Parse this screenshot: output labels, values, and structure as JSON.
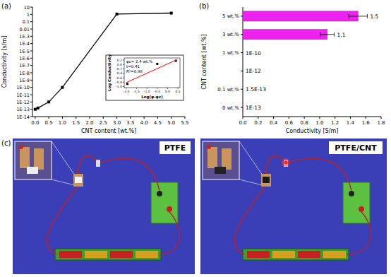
{
  "chart_data": [
    {
      "type": "line",
      "title": "(a)",
      "x_label": "CNT content [wt.%]",
      "y_label": "Conductivity [s/m]",
      "x": [
        0,
        0.1,
        0.5,
        1,
        3,
        5
      ],
      "values": [
        1e-13,
        1.5e-13,
        1e-12,
        1e-10,
        1.1,
        1.5
      ],
      "color": "#000000",
      "marker": "square",
      "log": "y",
      "xlim": [
        -0.1,
        5.5
      ],
      "xticks": [
        {
          "value": 0,
          "label": "0.0"
        },
        0.5,
        {
          "value": 1,
          "label": "1.0"
        },
        1.5,
        {
          "value": 2,
          "label": "2.0"
        },
        2.5,
        {
          "value": 3,
          "label": "3.0"
        },
        3.5,
        {
          "value": 4,
          "label": "4.0"
        },
        4.5,
        {
          "value": 5,
          "label": "5.0"
        },
        5.5
      ],
      "ylim": [
        1e-14,
        10
      ],
      "yticks": [
        {
          "value": 1e-14,
          "label": "1E-14"
        },
        {
          "value": 1e-13,
          "label": "1E-13"
        },
        {
          "value": 1e-12,
          "label": "1E-12"
        },
        {
          "value": 1e-11,
          "label": "1E-11"
        },
        {
          "value": 1e-10,
          "label": "1E-10"
        },
        {
          "value": 1e-09,
          "label": "1E-9"
        },
        {
          "value": 1e-08,
          "label": "1E-8"
        },
        {
          "value": 1e-07,
          "label": "1E-7"
        },
        {
          "value": 1e-06,
          "label": "1E-6"
        },
        {
          "value": 1e-05,
          "label": "1E-5"
        },
        {
          "value": 0.0001,
          "label": "1E-4"
        },
        {
          "value": 0.001,
          "label": "1E-3"
        },
        0.01,
        0.1,
        1,
        10
      ]
    },
    {
      "type": "scatter",
      "x_label": "Log(φ-φc)",
      "y_label": "Log Conductivity",
      "annotations": [
        "φc= 2.4 wt.%",
        "t=0.41",
        "R²=0.98"
      ],
      "xlim": [
        -2.1,
        0.6
      ],
      "xticks": [
        {
          "value": -2,
          "label": "-2.0"
        },
        -1.5,
        {
          "value": -1,
          "label": "-1.0"
        },
        -0.5,
        {
          "value": 0,
          "label": "0.0"
        },
        0.5
      ],
      "ylim": [
        -1.05,
        0.3
      ],
      "yticks": [
        {
          "value": -1,
          "label": "-1.0"
        },
        -0.8,
        -0.6,
        -0.4,
        -0.2,
        {
          "value": 0,
          "label": "0.0"
        },
        0.2
      ],
      "series": [
        {
          "type": "scatter",
          "color": "#000000",
          "marker": "square",
          "x": [
            -1.95,
            -0.5,
            0.4
          ],
          "values": [
            -0.88,
            0.03,
            0.17
          ]
        },
        {
          "type": "line",
          "color": "#ff0000",
          "line_style": "solid",
          "x": [
            -2.0,
            0.45
          ],
          "values": [
            -0.82,
            0.22
          ]
        }
      ]
    },
    {
      "type": "bar",
      "title": "(b)",
      "orientation": "horizontal",
      "x_label": "Conductivity [S/m]",
      "y_label": "CNT content [wt.%]",
      "categories": [
        "5 wt.%",
        "3 wt.%",
        "1 wt.%",
        null,
        "0.1 wt.%",
        "0 wt.%"
      ],
      "values": [
        1.5,
        1.1,
        1e-10,
        1e-12,
        1.5e-13,
        1e-13
      ],
      "value_labels": [
        "1.5",
        "1.1",
        "1E-10",
        "1E-12",
        "1.5E-13",
        "1E-13"
      ],
      "errors": [
        0.12,
        0.09,
        0,
        0,
        0,
        0
      ],
      "color": "#ee22ee",
      "data_labels": true,
      "xlim": [
        0,
        1.8
      ],
      "xticks": [
        {
          "value": 0,
          "label": "0.0"
        },
        0.2,
        0.4,
        0.6,
        0.8,
        {
          "value": 1,
          "label": "1.0"
        },
        1.2,
        1.4,
        1.6,
        1.8
      ]
    }
  ],
  "photos": {
    "label": "(c)",
    "panels": [
      {
        "title": "PTFE"
      },
      {
        "title": "PTFE/CNT"
      }
    ]
  }
}
